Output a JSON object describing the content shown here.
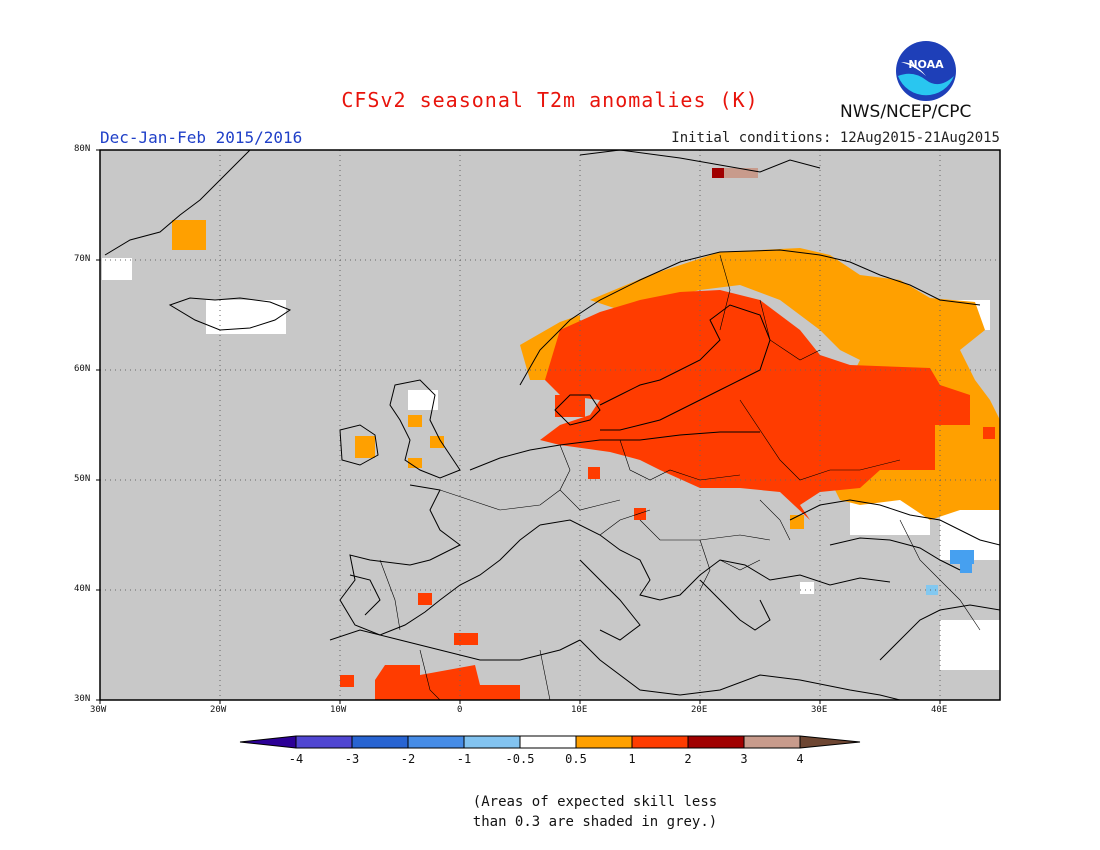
{
  "title": "CFSv2 seasonal T2m anomalies (K)",
  "season": "Dec-Jan-Feb 2015/2016",
  "initial_conditions": "Initial conditions: 12Aug2015-21Aug2015",
  "agency": "NWS/NCEP/CPC",
  "logo_text": "NOAA",
  "colors": {
    "grey": "#c8c8c8",
    "neutral": "#ffffff",
    "plus_0_5": "#ffa000",
    "plus_1": "#ff3c00",
    "plus_2": "#a00000",
    "plus_3": "#c89b8c",
    "minus_0_5": "#82c8f0",
    "minus_1": "#46a0f0"
  },
  "lat_labels": [
    "80N",
    "70N",
    "60N",
    "50N",
    "40N",
    "30N"
  ],
  "lon_labels": [
    "30W",
    "20W",
    "10W",
    "0",
    "10E",
    "20E",
    "30E",
    "40E"
  ],
  "colorbar": {
    "labels": [
      "-4",
      "-3",
      "-2",
      "-1",
      "-0.5",
      "0.5",
      "1",
      "2",
      "3",
      "4"
    ],
    "colors": [
      "#2c0096",
      "#5046d2",
      "#2864d2",
      "#468ce6",
      "#82c3f0",
      "#ffffff",
      "#ffa000",
      "#ff3c00",
      "#a00000",
      "#c89b8c",
      "#6e4632"
    ]
  },
  "note_line1": "(Areas of expected skill less",
  "note_line2": "than 0.3 are shaded in grey.)"
}
